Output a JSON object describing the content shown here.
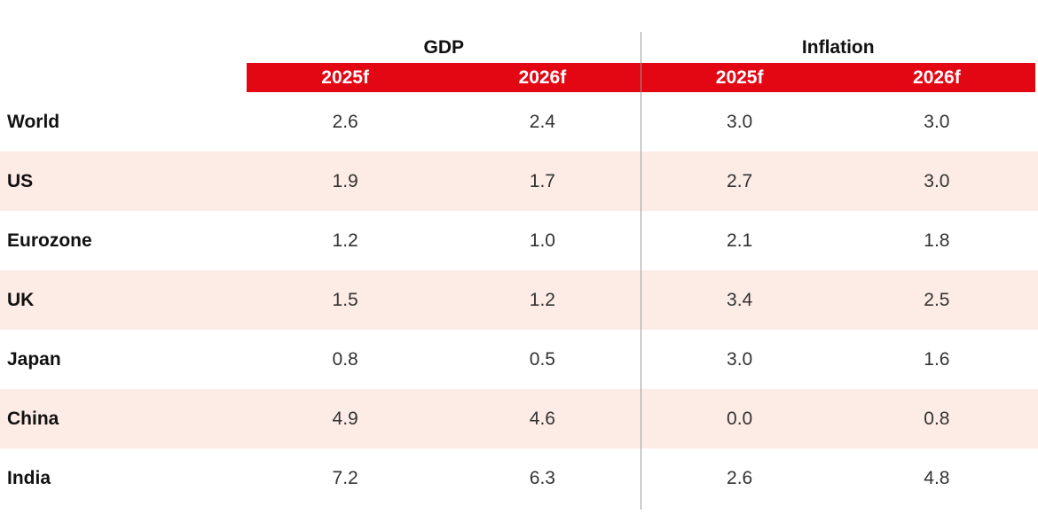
{
  "table": {
    "groups": [
      "GDP",
      "Inflation"
    ],
    "columns": [
      "2025f",
      "2026f",
      "2025f",
      "2026f"
    ],
    "rows": [
      {
        "label": "World",
        "values": [
          "2.6",
          "2.4",
          "3.0",
          "3.0"
        ]
      },
      {
        "label": "US",
        "values": [
          "1.9",
          "1.7",
          "2.7",
          "3.0"
        ]
      },
      {
        "label": "Eurozone",
        "values": [
          "1.2",
          "1.0",
          "2.1",
          "1.8"
        ]
      },
      {
        "label": "UK",
        "values": [
          "1.5",
          "1.2",
          "3.4",
          "2.5"
        ]
      },
      {
        "label": "Japan",
        "values": [
          "0.8",
          "0.5",
          "3.0",
          "1.6"
        ]
      },
      {
        "label": "China",
        "values": [
          "4.9",
          "4.6",
          "0.0",
          "0.8"
        ]
      },
      {
        "label": "India",
        "values": [
          "7.2",
          "6.3",
          "2.6",
          "4.8"
        ]
      }
    ]
  }
}
